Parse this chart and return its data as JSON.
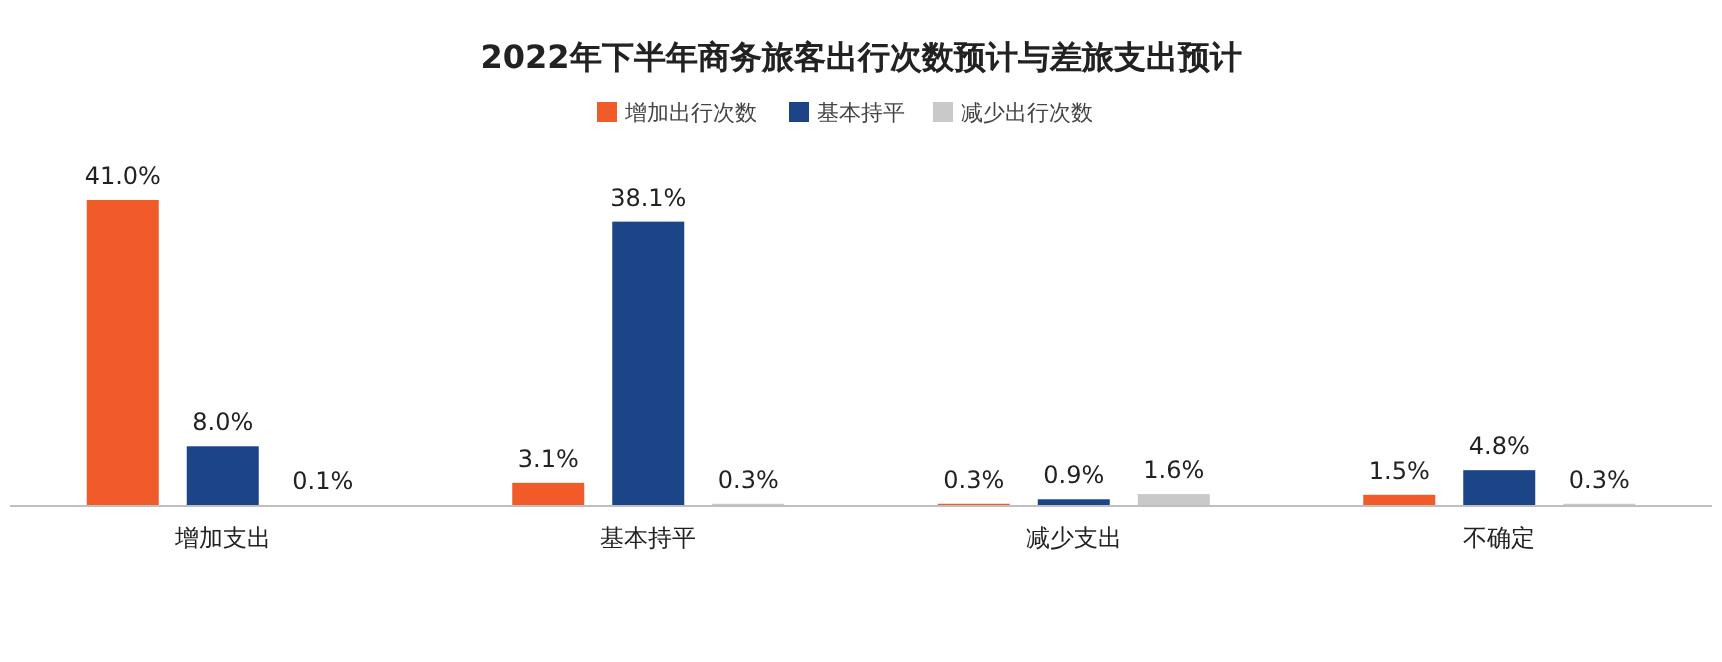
{
  "chart_data": {
    "type": "bar",
    "title": "2022年下半年商务旅客出行次数预计与差旅支出预计",
    "categories": [
      "增加支出",
      "基本持平",
      "减少支出",
      "不确定"
    ],
    "legend": "top",
    "series": [
      {
        "name": "增加出行次数",
        "color": "#f15a29",
        "values": [
          41.0,
          3.1,
          0.3,
          1.5
        ],
        "value_labels": [
          "41.0%",
          "3.1%",
          "0.3%",
          "1.5%"
        ]
      },
      {
        "name": "基本持平",
        "color": "#1c4587",
        "values": [
          8.0,
          38.1,
          0.9,
          4.8
        ],
        "value_labels": [
          "8.0%",
          "38.1%",
          "0.9%",
          "4.8%"
        ]
      },
      {
        "name": "减少出行次数",
        "color": "#c9c9c9",
        "values": [
          0.1,
          0.3,
          1.6,
          0.3
        ],
        "value_labels": [
          "0.1%",
          "0.3%",
          "1.6%",
          "0.3%"
        ]
      }
    ]
  }
}
